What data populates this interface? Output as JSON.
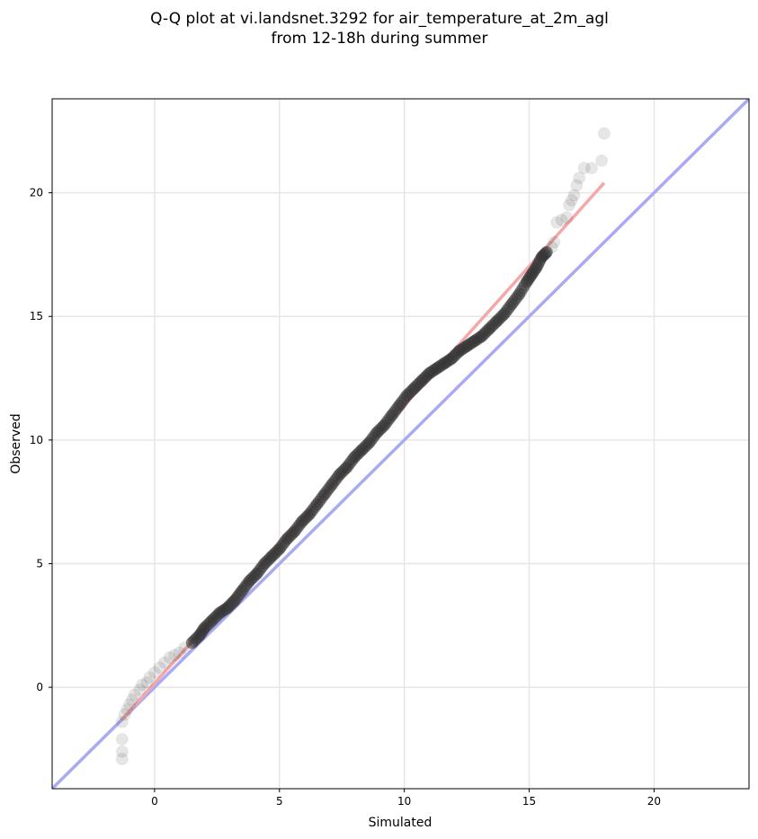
{
  "chart_data": {
    "type": "scatter",
    "title_lines": [
      "Q-Q plot at vi.landsnet.3292 for air_temperature_at_2m_agl",
      "from 12-18h during summer"
    ],
    "xlabel": "Simulated",
    "ylabel": "Observed",
    "xlim": [
      -4.1,
      23.8
    ],
    "ylim": [
      -4.1,
      23.8
    ],
    "x_ticks": [
      0,
      5,
      10,
      15,
      20
    ],
    "y_ticks": [
      0,
      5,
      10,
      15,
      20
    ],
    "grid": true,
    "colors": {
      "points": "#333333",
      "identity_line": "#aaaaf4",
      "fit_line": "#f4a8a8"
    },
    "series": [
      {
        "type": "scatter",
        "x": [
          -1.3,
          -1.3,
          -1.3,
          -1.3,
          -1.2,
          -1.1,
          -1.0,
          -0.9,
          -0.8,
          -0.6,
          -0.5,
          -0.3,
          -0.2,
          0.0,
          0.2,
          0.4,
          0.6,
          0.8,
          1.0,
          1.2,
          1.5,
          1.8,
          2.0,
          2.3,
          2.6,
          2.9,
          3.2,
          3.5,
          3.8,
          4.1,
          4.4,
          4.7,
          5.0,
          5.3,
          5.6,
          5.9,
          6.2,
          6.5,
          6.8,
          7.1,
          7.4,
          7.7,
          8.0,
          8.3,
          8.6,
          8.9,
          9.2,
          9.5,
          9.8,
          10.1,
          10.4,
          10.7,
          11.0,
          11.3,
          11.6,
          11.9,
          12.2,
          12.5,
          12.8,
          13.1,
          13.4,
          13.7,
          14.0,
          14.3,
          14.6,
          14.9,
          15.1,
          15.3,
          15.5,
          15.7,
          15.9,
          16.0,
          16.1,
          16.3,
          16.5,
          16.6,
          16.7,
          16.8,
          16.9,
          17.0,
          17.2,
          17.5,
          17.9,
          18.0
        ],
        "y": [
          -2.9,
          -2.6,
          -2.1,
          -1.4,
          -1.1,
          -0.9,
          -0.7,
          -0.5,
          -0.3,
          -0.1,
          0.1,
          0.2,
          0.4,
          0.6,
          0.8,
          1.0,
          1.2,
          1.3,
          1.4,
          1.6,
          1.8,
          2.1,
          2.4,
          2.7,
          3.0,
          3.2,
          3.5,
          3.9,
          4.3,
          4.6,
          5.0,
          5.3,
          5.6,
          6.0,
          6.3,
          6.7,
          7.0,
          7.4,
          7.8,
          8.2,
          8.6,
          8.9,
          9.3,
          9.6,
          9.9,
          10.3,
          10.6,
          11.0,
          11.4,
          11.8,
          12.1,
          12.4,
          12.7,
          12.9,
          13.1,
          13.3,
          13.6,
          13.8,
          14.0,
          14.2,
          14.5,
          14.8,
          15.1,
          15.5,
          15.9,
          16.4,
          16.7,
          17.0,
          17.4,
          17.6,
          17.8,
          18.0,
          18.8,
          18.9,
          19.0,
          19.5,
          19.7,
          19.9,
          20.3,
          20.6,
          21.0,
          21.0,
          21.3,
          22.4
        ]
      },
      {
        "type": "line",
        "x": [
          -4.1,
          23.8
        ],
        "y": [
          -4.1,
          23.8
        ]
      },
      {
        "type": "line",
        "x": [
          -1.3,
          18.0
        ],
        "y": [
          -1.3,
          20.4
        ]
      }
    ]
  }
}
